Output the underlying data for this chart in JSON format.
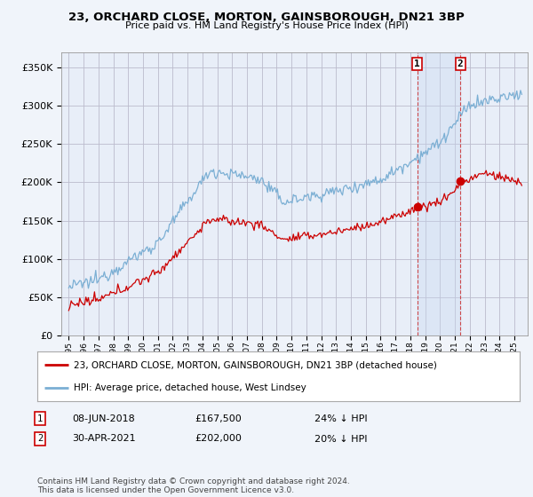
{
  "title": "23, ORCHARD CLOSE, MORTON, GAINSBOROUGH, DN21 3BP",
  "subtitle": "Price paid vs. HM Land Registry's House Price Index (HPI)",
  "ylim": [
    0,
    370000
  ],
  "yticks": [
    0,
    50000,
    100000,
    150000,
    200000,
    250000,
    300000,
    350000
  ],
  "bg_color": "#f0f4fa",
  "plot_bg_color": "#e8eef8",
  "grid_color": "#bbbbcc",
  "hpi_color": "#7bafd4",
  "price_color": "#cc0000",
  "span_color": "#c8d8f0",
  "marker1_year": 2018.44,
  "marker1_price": 167500,
  "marker1_label": "08-JUN-2018",
  "marker1_pct": "24% ↓ HPI",
  "marker2_year": 2021.33,
  "marker2_price": 202000,
  "marker2_label": "30-APR-2021",
  "marker2_pct": "20% ↓ HPI",
  "legend_red_label": "23, ORCHARD CLOSE, MORTON, GAINSBOROUGH, DN21 3BP (detached house)",
  "legend_blue_label": "HPI: Average price, detached house, West Lindsey",
  "footer": "Contains HM Land Registry data © Crown copyright and database right 2024.\nThis data is licensed under the Open Government Licence v3.0.",
  "xstart": 1995,
  "xend": 2025.5
}
